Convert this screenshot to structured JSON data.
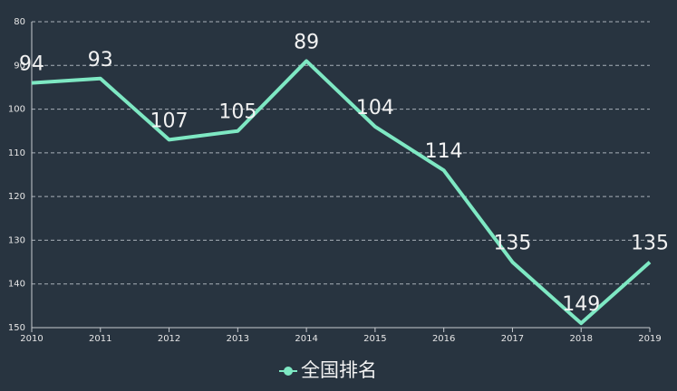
{
  "chart_data": {
    "type": "line",
    "categories": [
      "2010",
      "2011",
      "2012",
      "2013",
      "2014",
      "2015",
      "2016",
      "2017",
      "2018",
      "2019"
    ],
    "series": [
      {
        "name": "全国排名",
        "color": "#7ee8c3",
        "values": [
          94,
          93,
          107,
          105,
          89,
          104,
          114,
          135,
          149,
          135
        ]
      }
    ],
    "ylim": [
      80,
      150
    ],
    "yticks": [
      80,
      90,
      100,
      110,
      120,
      130,
      140,
      150
    ],
    "y_inverse": true,
    "grid": true,
    "legend": "bottom"
  }
}
